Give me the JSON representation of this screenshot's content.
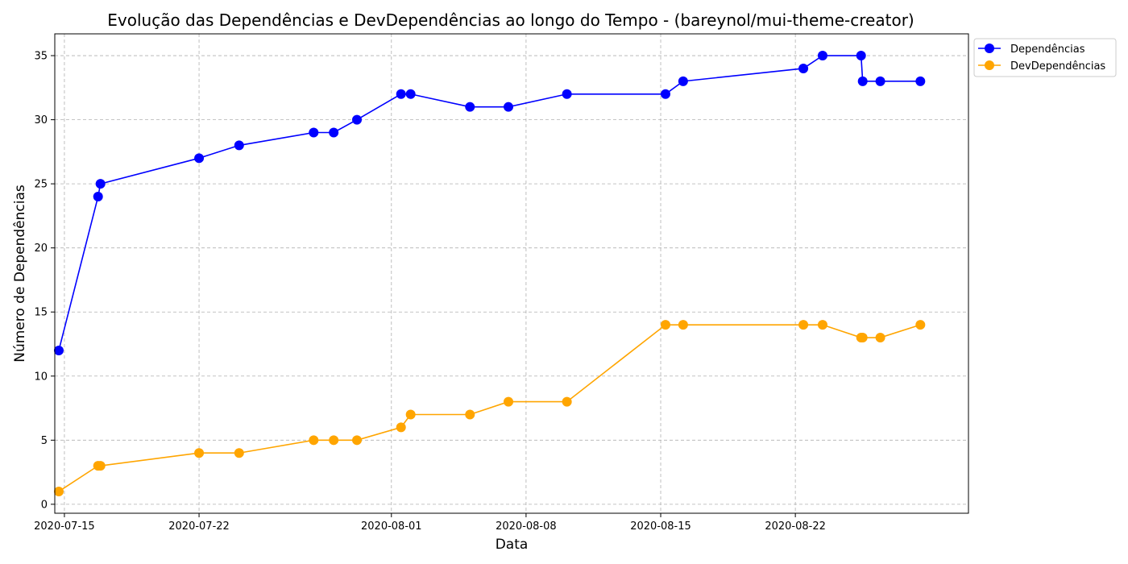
{
  "chart_data": {
    "type": "line",
    "title": "Evolução das Dependências e DevDependências ao longo do Tempo - (bareynol/mui-theme-creator)",
    "xlabel": "Data",
    "ylabel": "Número de Dependências",
    "x_tick_labels": [
      "2020-07-15",
      "2020-07-22",
      "2020-08-01",
      "2020-08-08",
      "2020-08-15",
      "2020-08-22"
    ],
    "y_ticks": [
      0,
      5,
      10,
      15,
      20,
      25,
      30,
      35
    ],
    "xlim": [
      "2020-07-14T12:00",
      "2020-08-31T00:00"
    ],
    "ylim": [
      -0.7,
      36.7
    ],
    "grid": true,
    "legend_position": "outside-top-right",
    "x": [
      "2020-07-14T17:00",
      "2020-07-16T18:00",
      "2020-07-16T21:00",
      "2020-07-22T00:00",
      "2020-07-24T02:00",
      "2020-07-27T23:00",
      "2020-07-29T00:00",
      "2020-07-30T05:00",
      "2020-08-01T12:00",
      "2020-08-02T00:00",
      "2020-08-05T02:00",
      "2020-08-07T02:00",
      "2020-08-10T03:00",
      "2020-08-15T06:00",
      "2020-08-16T04:00",
      "2020-08-22T10:00",
      "2020-08-23T10:00",
      "2020-08-25T10:00",
      "2020-08-25T12:00",
      "2020-08-26T10:00",
      "2020-08-28T12:00"
    ],
    "series": [
      {
        "name": "Dependências",
        "color": "#0000ff",
        "values": [
          12,
          24,
          25,
          27,
          28,
          29,
          29,
          30,
          32,
          32,
          31,
          31,
          32,
          32,
          33,
          34,
          35,
          35,
          33,
          33,
          33
        ]
      },
      {
        "name": "DevDependências",
        "color": "#ffa500",
        "values": [
          1,
          3,
          3,
          4,
          4,
          5,
          5,
          5,
          6,
          7,
          7,
          8,
          8,
          14,
          14,
          14,
          14,
          13,
          13,
          13,
          14
        ]
      }
    ]
  }
}
